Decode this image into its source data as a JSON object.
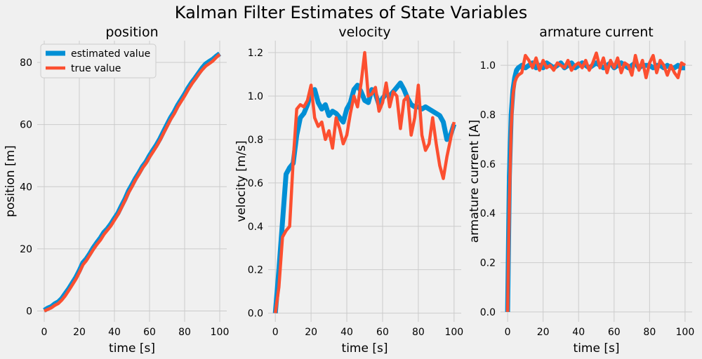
{
  "figure": {
    "title": "Kalman Filter Estimates of State Variables",
    "background": "#f0f0f0",
    "colors": {
      "estimated": "#008fd5",
      "true": "#fc4f30"
    }
  },
  "chart_data": [
    {
      "type": "line",
      "title": "position",
      "xlabel": "time [s]",
      "ylabel": "position [m]",
      "xlim": [
        -4,
        104
      ],
      "ylim": [
        -3.5,
        87
      ],
      "xticks": [
        0,
        20,
        40,
        60,
        80,
        100
      ],
      "yticks": [
        0,
        20,
        40,
        60,
        80
      ],
      "grid": true,
      "legend": "upper-left",
      "series": [
        {
          "name": "estimated value",
          "x": [
            0,
            2,
            4,
            6,
            8,
            10,
            12,
            14,
            16,
            18,
            20,
            22,
            24,
            26,
            28,
            30,
            32,
            34,
            36,
            38,
            40,
            42,
            44,
            46,
            48,
            50,
            52,
            54,
            56,
            58,
            60,
            62,
            64,
            66,
            68,
            70,
            72,
            74,
            76,
            78,
            80,
            82,
            84,
            86,
            88,
            90,
            92,
            94,
            96,
            98,
            100
          ],
          "y": [
            0.2,
            0.9,
            1.4,
            2.3,
            2.9,
            4.0,
            5.6,
            7.2,
            9.0,
            10.8,
            13.0,
            15.5,
            16.8,
            18.5,
            20.4,
            22.0,
            23.5,
            25.3,
            26.5,
            28.0,
            29.8,
            31.5,
            33.8,
            36.0,
            38.6,
            40.6,
            42.7,
            44.5,
            46.5,
            48.0,
            50.0,
            51.8,
            53.5,
            55.5,
            57.8,
            60.0,
            62.2,
            64.0,
            66.2,
            68.0,
            69.8,
            71.8,
            73.5,
            75.0,
            76.6,
            78.2,
            79.5,
            80.3,
            81.0,
            82.0,
            82.8
          ]
        },
        {
          "name": "true value",
          "x": [
            0,
            2,
            4,
            6,
            8,
            10,
            12,
            14,
            16,
            18,
            20,
            22,
            24,
            26,
            28,
            30,
            32,
            34,
            36,
            38,
            40,
            42,
            44,
            46,
            48,
            50,
            52,
            54,
            56,
            58,
            60,
            62,
            64,
            66,
            68,
            70,
            72,
            74,
            76,
            78,
            80,
            82,
            84,
            86,
            88,
            90,
            92,
            94,
            96,
            98,
            100
          ],
          "y": [
            0.0,
            0.5,
            1.0,
            1.8,
            2.4,
            3.5,
            4.9,
            6.6,
            8.4,
            10.2,
            12.4,
            14.8,
            16.2,
            18.0,
            19.8,
            21.4,
            22.8,
            24.6,
            26.0,
            27.4,
            29.2,
            31.0,
            33.2,
            35.5,
            38.0,
            40.0,
            42.2,
            44.0,
            46.0,
            47.5,
            49.5,
            51.2,
            53.0,
            55.0,
            57.2,
            59.4,
            61.6,
            63.4,
            65.6,
            67.4,
            69.2,
            71.2,
            73.0,
            74.6,
            76.2,
            77.6,
            78.8,
            79.6,
            80.4,
            81.6,
            82.6
          ]
        }
      ]
    },
    {
      "type": "line",
      "title": "velocity",
      "xlabel": "time [s]",
      "ylabel": "velocity [m/s]",
      "xlim": [
        -4,
        104
      ],
      "ylim": [
        -0.04,
        1.255
      ],
      "xticks": [
        0,
        20,
        40,
        60,
        80,
        100
      ],
      "yticks": [
        0.0,
        0.2,
        0.4,
        0.6,
        0.8,
        1.0,
        1.2
      ],
      "grid": true,
      "series": [
        {
          "name": "estimated value",
          "x": [
            0,
            2,
            4,
            6,
            8,
            10,
            12,
            14,
            16,
            18,
            20,
            22,
            24,
            26,
            28,
            30,
            32,
            34,
            36,
            38,
            40,
            42,
            44,
            46,
            48,
            50,
            52,
            54,
            56,
            58,
            60,
            62,
            64,
            66,
            68,
            70,
            72,
            74,
            76,
            78,
            80,
            82,
            84,
            86,
            88,
            90,
            92,
            94,
            96,
            98,
            100
          ],
          "y": [
            0.0,
            0.2,
            0.42,
            0.64,
            0.67,
            0.69,
            0.82,
            0.9,
            0.92,
            0.96,
            1.02,
            1.03,
            0.97,
            0.94,
            0.96,
            0.91,
            0.93,
            0.92,
            0.9,
            0.88,
            0.94,
            0.97,
            1.03,
            1.05,
            1.02,
            0.98,
            0.97,
            1.03,
            1.01,
            0.96,
            0.99,
            1.01,
            1.0,
            1.02,
            1.04,
            1.06,
            1.03,
            0.99,
            0.96,
            0.95,
            0.95,
            0.94,
            0.95,
            0.94,
            0.93,
            0.92,
            0.91,
            0.88,
            0.8,
            0.82,
            0.87
          ]
        },
        {
          "name": "true value",
          "x": [
            0,
            2,
            4,
            6,
            8,
            10,
            12,
            14,
            16,
            18,
            20,
            22,
            24,
            26,
            28,
            30,
            32,
            34,
            36,
            38,
            40,
            42,
            44,
            46,
            48,
            50,
            52,
            54,
            56,
            58,
            60,
            62,
            64,
            66,
            68,
            70,
            72,
            74,
            76,
            78,
            80,
            82,
            84,
            86,
            88,
            90,
            92,
            94,
            96,
            98,
            100
          ],
          "y": [
            0.0,
            0.12,
            0.35,
            0.38,
            0.4,
            0.7,
            0.94,
            0.96,
            0.95,
            0.98,
            1.05,
            0.9,
            0.86,
            0.88,
            0.8,
            0.84,
            0.76,
            0.9,
            0.85,
            0.78,
            0.82,
            0.92,
            1.0,
            0.95,
            1.06,
            1.2,
            1.0,
            1.01,
            1.04,
            0.93,
            0.97,
            1.06,
            0.95,
            1.02,
            1.0,
            0.85,
            0.98,
            1.0,
            0.82,
            0.9,
            1.05,
            0.82,
            0.75,
            0.78,
            0.9,
            0.78,
            0.68,
            0.62,
            0.72,
            0.8,
            0.88
          ]
        }
      ]
    },
    {
      "type": "line",
      "title": "armature current",
      "xlabel": "time [s]",
      "ylabel": "armature current [A]",
      "xlim": [
        -4,
        104
      ],
      "ylim": [
        -0.04,
        1.1
      ],
      "xticks": [
        0,
        20,
        40,
        60,
        80,
        100
      ],
      "yticks": [
        0.0,
        0.2,
        0.4,
        0.6,
        0.8,
        1.0
      ],
      "grid": true,
      "series": [
        {
          "name": "estimated value",
          "x": [
            0,
            1,
            2,
            3,
            4,
            5,
            6,
            8,
            10,
            12,
            14,
            16,
            18,
            20,
            22,
            24,
            26,
            28,
            30,
            32,
            34,
            36,
            38,
            40,
            42,
            44,
            46,
            48,
            50,
            52,
            54,
            56,
            58,
            60,
            62,
            64,
            66,
            68,
            70,
            72,
            74,
            76,
            78,
            80,
            82,
            84,
            86,
            88,
            90,
            92,
            94,
            96,
            98,
            100
          ],
          "y": [
            0.0,
            0.55,
            0.8,
            0.9,
            0.95,
            0.98,
            0.99,
            1.0,
            0.99,
            1.0,
            1.01,
            0.99,
            1.0,
            0.99,
            1.01,
            1.0,
            0.99,
            1.0,
            1.01,
            0.99,
            1.0,
            1.01,
            0.99,
            1.0,
            1.01,
            1.0,
            0.99,
            1.0,
            1.01,
            1.0,
            0.99,
            1.0,
            1.01,
            0.99,
            1.0,
            1.01,
            1.0,
            0.99,
            1.0,
            1.01,
            0.99,
            1.0,
            1.0,
            1.0,
            0.99,
            1.0,
            1.0,
            0.99,
            1.0,
            0.99,
            0.99,
            1.0,
            0.99,
            0.99
          ]
        },
        {
          "name": "true value",
          "x": [
            0,
            1,
            2,
            3,
            4,
            5,
            6,
            8,
            10,
            12,
            14,
            16,
            18,
            20,
            22,
            24,
            26,
            28,
            30,
            32,
            34,
            36,
            38,
            40,
            42,
            44,
            46,
            48,
            50,
            52,
            54,
            56,
            58,
            60,
            62,
            64,
            66,
            68,
            70,
            72,
            74,
            76,
            78,
            80,
            82,
            84,
            86,
            88,
            90,
            92,
            94,
            96,
            98,
            100
          ],
          "y": [
            0.0,
            0.45,
            0.75,
            0.88,
            0.93,
            0.95,
            0.96,
            0.97,
            1.04,
            1.02,
            0.99,
            1.03,
            0.98,
            1.02,
            0.99,
            1.0,
            0.98,
            1.01,
            1.0,
            0.99,
            1.02,
            0.98,
            1.0,
            1.01,
            0.99,
            1.02,
            0.98,
            1.01,
            1.05,
            0.99,
            1.03,
            0.97,
            1.02,
            0.99,
            1.03,
            0.97,
            1.01,
            1.0,
            0.96,
            1.04,
            0.98,
            1.02,
            0.95,
            1.01,
            1.04,
            0.97,
            1.02,
            1.0,
            0.96,
            1.0,
            0.97,
            0.95,
            1.01,
            1.0
          ]
        }
      ]
    }
  ]
}
